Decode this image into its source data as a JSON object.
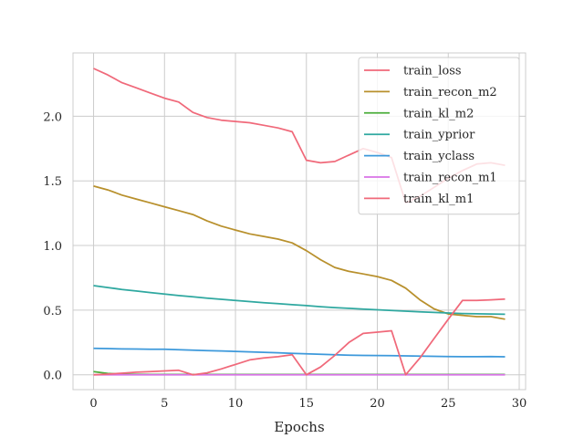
{
  "chart_data": {
    "type": "line",
    "title": "",
    "xlabel": "Epochs",
    "ylabel": "",
    "xlim": [
      -1.45,
      30.45
    ],
    "ylim": [
      -0.115,
      2.49
    ],
    "grid": true,
    "legend_position": "top-right",
    "x_ticks": [
      0,
      5,
      10,
      15,
      20,
      25,
      30
    ],
    "x_tick_labels": [
      "0",
      "5",
      "10",
      "15",
      "20",
      "25",
      "30"
    ],
    "y_ticks": [
      0.0,
      0.5,
      1.0,
      1.5,
      2.0
    ],
    "y_tick_labels": [
      "0.0",
      "0.5",
      "1.0",
      "1.5",
      "2.0"
    ],
    "x": [
      0,
      1,
      2,
      3,
      4,
      5,
      6,
      7,
      8,
      9,
      10,
      11,
      12,
      13,
      14,
      15,
      16,
      17,
      18,
      19,
      20,
      21,
      22,
      23,
      24,
      25,
      26,
      27,
      28,
      29
    ],
    "series": [
      {
        "name": "train_loss",
        "color": "#f0697a",
        "values": [
          2.37,
          2.32,
          2.26,
          2.22,
          2.18,
          2.14,
          2.11,
          2.03,
          1.99,
          1.97,
          1.96,
          1.95,
          1.93,
          1.91,
          1.88,
          1.66,
          1.64,
          1.65,
          1.7,
          1.75,
          1.72,
          1.68,
          1.33,
          1.38,
          1.45,
          1.52,
          1.58,
          1.63,
          1.64,
          1.62
        ]
      },
      {
        "name": "train_recon_m2",
        "color": "#b8902c",
        "values": [
          1.46,
          1.43,
          1.39,
          1.36,
          1.33,
          1.3,
          1.27,
          1.24,
          1.19,
          1.15,
          1.12,
          1.09,
          1.07,
          1.05,
          1.02,
          0.96,
          0.89,
          0.83,
          0.8,
          0.78,
          0.76,
          0.73,
          0.67,
          0.58,
          0.51,
          0.47,
          0.46,
          0.45,
          0.45,
          0.43
        ]
      },
      {
        "name": "train_kl_m2",
        "color": "#4bad3b",
        "values": [
          0.025,
          0.01,
          0.005,
          0.003,
          0.002,
          0.002,
          0.002,
          0.002,
          0.002,
          0.002,
          0.002,
          0.002,
          0.002,
          0.002,
          0.002,
          0.002,
          0.002,
          0.002,
          0.002,
          0.002,
          0.002,
          0.002,
          0.002,
          0.002,
          0.002,
          0.002,
          0.002,
          0.002,
          0.002,
          0.002
        ]
      },
      {
        "name": "train_yprior",
        "color": "#2fa8a0",
        "values": [
          0.69,
          0.675,
          0.66,
          0.648,
          0.636,
          0.625,
          0.613,
          0.603,
          0.593,
          0.584,
          0.575,
          0.566,
          0.558,
          0.55,
          0.542,
          0.535,
          0.527,
          0.52,
          0.514,
          0.508,
          0.503,
          0.498,
          0.492,
          0.487,
          0.482,
          0.478,
          0.474,
          0.472,
          0.47,
          0.468
        ]
      },
      {
        "name": "train_yclass",
        "color": "#3d99db",
        "values": [
          0.205,
          0.203,
          0.2,
          0.199,
          0.198,
          0.197,
          0.194,
          0.191,
          0.187,
          0.184,
          0.181,
          0.177,
          0.174,
          0.17,
          0.166,
          0.162,
          0.158,
          0.155,
          0.152,
          0.15,
          0.149,
          0.148,
          0.146,
          0.145,
          0.143,
          0.141,
          0.14,
          0.14,
          0.141,
          0.139
        ]
      },
      {
        "name": "train_recon_m1",
        "color": "#d873e6",
        "values": [
          0.0,
          0.0,
          0.0,
          0.0,
          0.0,
          0.0,
          0.0,
          0.0,
          0.0,
          0.0,
          0.0,
          0.0,
          0.0,
          0.0,
          0.0,
          0.0,
          0.0,
          0.0,
          0.0,
          0.0,
          0.0,
          0.0,
          0.0,
          0.0,
          0.0,
          0.0,
          0.0,
          0.0,
          0.0,
          0.0
        ]
      },
      {
        "name": "train_kl_m1",
        "color": "#f0697a",
        "values": [
          0.0,
          0.005,
          0.012,
          0.02,
          0.025,
          0.03,
          0.035,
          0.0,
          0.015,
          0.045,
          0.08,
          0.115,
          0.13,
          0.14,
          0.155,
          0.0,
          0.06,
          0.15,
          0.25,
          0.32,
          0.33,
          0.34,
          0.0,
          0.13,
          0.28,
          0.43,
          0.575,
          0.575,
          0.58,
          0.585
        ]
      }
    ]
  }
}
